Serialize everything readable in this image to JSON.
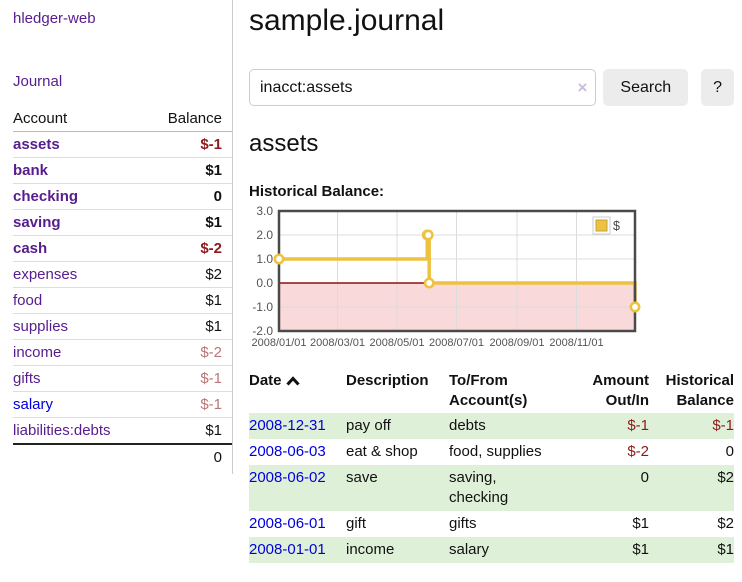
{
  "colors": {
    "link_purple": "#571c8d",
    "link_blue": "#0000dd",
    "negative_dark": "#8e1b1b",
    "negative_light": "#b97676",
    "row_stripe_green": "#dff0d8",
    "button_gray": "#ececec",
    "accent_gold": "#edc240"
  },
  "sidebar": {
    "brand": "hledger-web",
    "nav_journal": "Journal",
    "columns": {
      "account": "Account",
      "balance": "Balance"
    },
    "rows": [
      {
        "account": "assets",
        "indent": 1,
        "bold": true,
        "name_color": "purple",
        "balance": "$-1",
        "balance_color": "red"
      },
      {
        "account": "bank",
        "indent": 2,
        "bold": true,
        "name_color": "purple",
        "balance": "$1",
        "balance_color": "black"
      },
      {
        "account": "checking",
        "indent": 3,
        "bold": true,
        "name_color": "purple",
        "balance": "0",
        "balance_color": "black"
      },
      {
        "account": "saving",
        "indent": 3,
        "bold": true,
        "name_color": "purple",
        "balance": "$1",
        "balance_color": "black"
      },
      {
        "account": "cash",
        "indent": 2,
        "bold": true,
        "name_color": "purple",
        "balance": "$-2",
        "balance_color": "red"
      },
      {
        "account": "expenses",
        "indent": 1,
        "bold": false,
        "name_color": "purple",
        "balance": "$2",
        "balance_color": "black"
      },
      {
        "account": "food",
        "indent": 2,
        "bold": false,
        "name_color": "purple",
        "balance": "$1",
        "balance_color": "black"
      },
      {
        "account": "supplies",
        "indent": 2,
        "bold": false,
        "name_color": "purple",
        "balance": "$1",
        "balance_color": "black"
      },
      {
        "account": "income",
        "indent": 1,
        "bold": false,
        "name_color": "purple",
        "balance": "$-2",
        "balance_color": "rose"
      },
      {
        "account": "gifts",
        "indent": 2,
        "bold": false,
        "name_color": "purple",
        "balance": "$-1",
        "balance_color": "rose"
      },
      {
        "account": "salary",
        "indent": 2,
        "bold": false,
        "name_color": "blue",
        "balance": "$-1",
        "balance_color": "rose"
      },
      {
        "account": "liabilities:debts",
        "indent": 1,
        "bold": false,
        "name_color": "purple",
        "balance": "$1",
        "balance_color": "black"
      }
    ],
    "total": "0"
  },
  "main": {
    "title": "sample.journal",
    "search": {
      "value": "inacct:assets",
      "clear_icon": "×",
      "search_button": "Search",
      "help_button": "?"
    },
    "account_heading": "assets",
    "chart_title": "Historical Balance:"
  },
  "chart_data": {
    "type": "line",
    "mode": "steps",
    "title": "Historical Balance",
    "series": [
      {
        "name": "$",
        "color": "#edc240",
        "points": [
          [
            "2008-01-01",
            1
          ],
          [
            "2008-06-01",
            2
          ],
          [
            "2008-06-02",
            2
          ],
          [
            "2008-06-03",
            0
          ],
          [
            "2008-12-31",
            -1
          ]
        ]
      }
    ],
    "xlim": [
      "2008-01-01",
      "2008-12-31"
    ],
    "ylim": [
      -2,
      3
    ],
    "x_tick_labels": [
      "2008/01/01",
      "2008/03/01",
      "2008/05/01",
      "2008/07/01",
      "2008/09/01",
      "2008/11/01"
    ],
    "y_tick_values": [
      3,
      2,
      1,
      0,
      -1,
      -2
    ],
    "y_tick_labels": [
      "3.0",
      "2.0",
      "1.0",
      "0.0",
      "-1.0",
      "-2.0"
    ],
    "grid": true,
    "legend_position": "top-right",
    "legend_label": "$",
    "negative_region_color": "#f9d9d9",
    "zero_line_color": "#8f1010",
    "grid_color": "#dcdcdc",
    "border_color": "#4a4a4a",
    "tick_label_color": "#545454"
  },
  "register": {
    "headers": {
      "date": "Date",
      "description": "Description",
      "accounts": "To/From Account(s)",
      "amount": "Amount Out/In",
      "balance": "Historical Balance"
    },
    "rows": [
      {
        "date": "2008-12-31",
        "description": "pay off",
        "accounts": "debts",
        "amount": "$-1",
        "amount_negative": true,
        "balance": "$-1",
        "balance_negative": true
      },
      {
        "date": "2008-06-03",
        "description": "eat & shop",
        "accounts": "food, supplies",
        "amount": "$-2",
        "amount_negative": true,
        "balance": "0",
        "balance_negative": false
      },
      {
        "date": "2008-06-02",
        "description": "save",
        "accounts": "saving, checking",
        "amount": "0",
        "amount_negative": false,
        "balance": "$2",
        "balance_negative": false
      },
      {
        "date": "2008-06-01",
        "description": "gift",
        "accounts": "gifts",
        "amount": "$1",
        "amount_negative": false,
        "balance": "$2",
        "balance_negative": false
      },
      {
        "date": "2008-01-01",
        "description": "income",
        "accounts": "salary",
        "amount": "$1",
        "amount_negative": false,
        "balance": "$1",
        "balance_negative": false
      }
    ]
  }
}
